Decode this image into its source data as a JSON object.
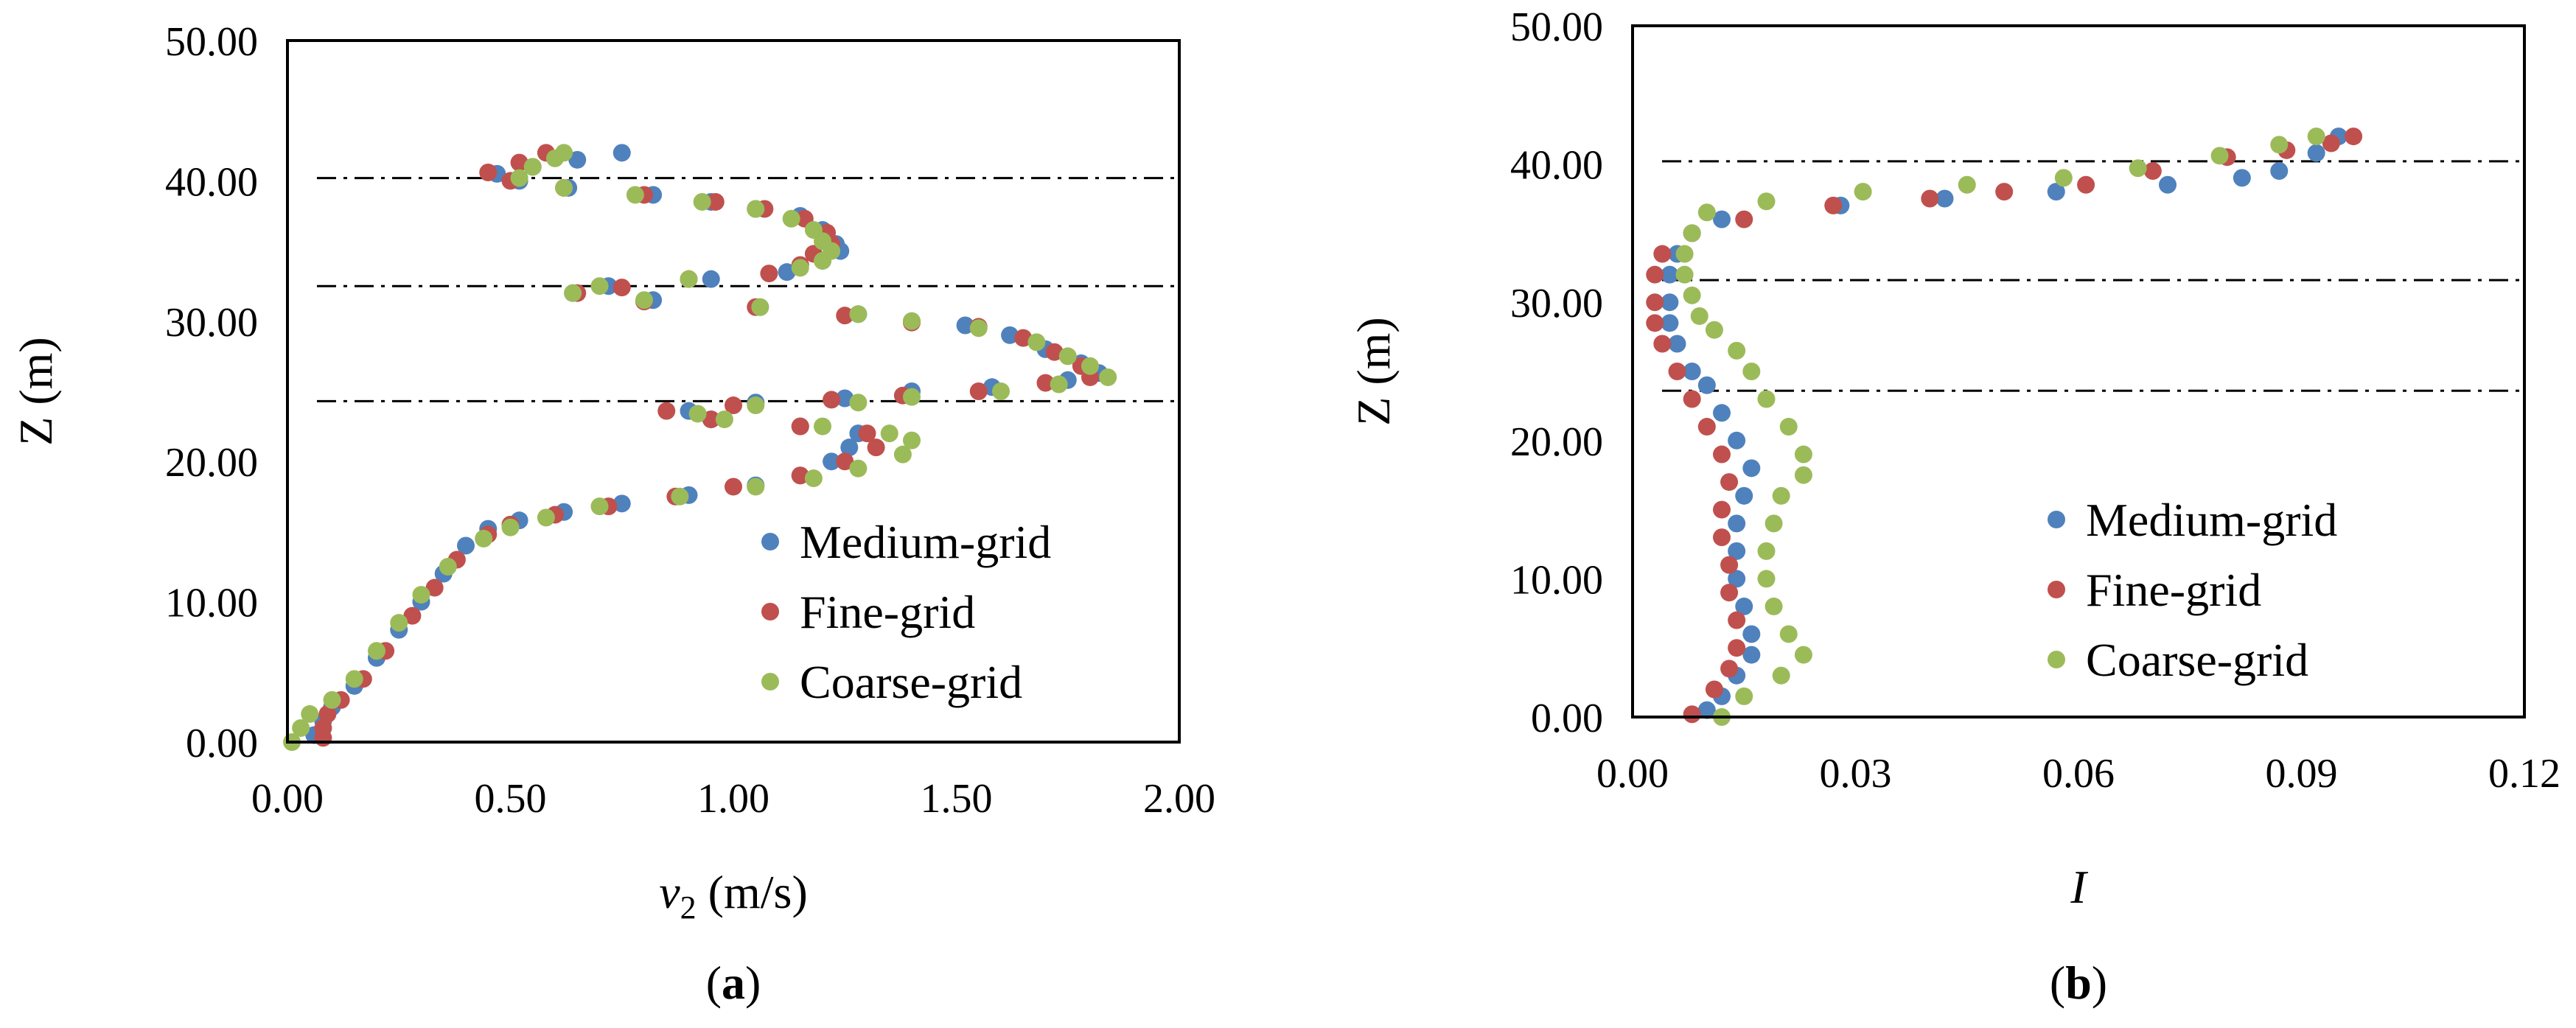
{
  "chart_data": [
    {
      "type": "scatter",
      "panel_label": "(a)",
      "panel_letter": "a",
      "title": "",
      "xlabel_symbol": "v",
      "xlabel_subscript": "2",
      "xlabel_unit": " (m/s)",
      "ylabel": "Z (m)",
      "xlim": [
        0,
        2
      ],
      "ylim": [
        0,
        50
      ],
      "xticks": [
        "0.00",
        "0.50",
        "1.00",
        "1.50",
        "2.00"
      ],
      "yticks": [
        "0.00",
        "10.00",
        "20.00",
        "30.00",
        "40.00",
        "50.00"
      ],
      "grid": false,
      "legend_position": "lower-right",
      "reference_lines_z": [
        40.2,
        32.5,
        24.3
      ],
      "series": [
        {
          "name": "Medium-grid",
          "color": "#4f81bd",
          "points": [
            [
              0.75,
              42.0
            ],
            [
              0.65,
              41.5
            ],
            [
              0.55,
              41.0
            ],
            [
              0.47,
              40.5
            ],
            [
              0.52,
              40.0
            ],
            [
              0.63,
              39.5
            ],
            [
              0.82,
              39.0
            ],
            [
              0.95,
              38.5
            ],
            [
              1.05,
              38.0
            ],
            [
              1.15,
              37.5
            ],
            [
              1.2,
              36.5
            ],
            [
              1.23,
              35.5
            ],
            [
              1.24,
              35.0
            ],
            [
              1.2,
              34.3
            ],
            [
              1.12,
              33.5
            ],
            [
              0.95,
              33.0
            ],
            [
              0.72,
              32.5
            ],
            [
              0.64,
              32.0
            ],
            [
              0.82,
              31.5
            ],
            [
              1.06,
              31.0
            ],
            [
              1.28,
              30.5
            ],
            [
              1.4,
              30.0
            ],
            [
              1.52,
              29.7
            ],
            [
              1.62,
              29.0
            ],
            [
              1.7,
              28.0
            ],
            [
              1.78,
              27.0
            ],
            [
              1.82,
              26.3
            ],
            [
              1.75,
              25.8
            ],
            [
              1.58,
              25.3
            ],
            [
              1.4,
              25.0
            ],
            [
              1.25,
              24.5
            ],
            [
              1.05,
              24.2
            ],
            [
              0.9,
              23.6
            ],
            [
              0.95,
              23.0
            ],
            [
              1.15,
              22.5
            ],
            [
              1.28,
              22.0
            ],
            [
              1.26,
              21.0
            ],
            [
              1.22,
              20.0
            ],
            [
              1.15,
              19.0
            ],
            [
              1.05,
              18.3
            ],
            [
              0.9,
              17.6
            ],
            [
              0.75,
              17.0
            ],
            [
              0.62,
              16.4
            ],
            [
              0.52,
              15.8
            ],
            [
              0.45,
              15.2
            ],
            [
              0.4,
              14.0
            ],
            [
              0.35,
              12.0
            ],
            [
              0.3,
              10.0
            ],
            [
              0.25,
              8.0
            ],
            [
              0.2,
              6.0
            ],
            [
              0.15,
              4.0
            ],
            [
              0.1,
              2.5
            ],
            [
              0.08,
              1.5
            ],
            [
              0.06,
              0.5
            ]
          ]
        },
        {
          "name": "Fine-grid",
          "color": "#c0504d",
          "points": [
            [
              0.58,
              42.0
            ],
            [
              0.52,
              41.3
            ],
            [
              0.45,
              40.6
            ],
            [
              0.5,
              40.0
            ],
            [
              0.62,
              39.5
            ],
            [
              0.8,
              39.0
            ],
            [
              0.96,
              38.5
            ],
            [
              1.07,
              38.0
            ],
            [
              1.16,
              37.3
            ],
            [
              1.21,
              36.3
            ],
            [
              1.22,
              35.5
            ],
            [
              1.18,
              34.8
            ],
            [
              1.15,
              34.0
            ],
            [
              1.08,
              33.4
            ],
            [
              0.9,
              33.0
            ],
            [
              0.75,
              32.4
            ],
            [
              0.65,
              32.0
            ],
            [
              0.8,
              31.4
            ],
            [
              1.05,
              31.0
            ],
            [
              1.25,
              30.4
            ],
            [
              1.4,
              29.9
            ],
            [
              1.55,
              29.6
            ],
            [
              1.65,
              28.8
            ],
            [
              1.72,
              27.8
            ],
            [
              1.78,
              26.8
            ],
            [
              1.8,
              26.0
            ],
            [
              1.7,
              25.6
            ],
            [
              1.55,
              25.0
            ],
            [
              1.38,
              24.7
            ],
            [
              1.22,
              24.4
            ],
            [
              1.0,
              24.0
            ],
            [
              0.85,
              23.6
            ],
            [
              0.95,
              23.0
            ],
            [
              1.15,
              22.5
            ],
            [
              1.3,
              22.0
            ],
            [
              1.32,
              21.0
            ],
            [
              1.25,
              20.0
            ],
            [
              1.15,
              19.0
            ],
            [
              1.0,
              18.2
            ],
            [
              0.87,
              17.5
            ],
            [
              0.72,
              16.8
            ],
            [
              0.6,
              16.2
            ],
            [
              0.5,
              15.5
            ],
            [
              0.45,
              14.8
            ],
            [
              0.38,
              13.0
            ],
            [
              0.33,
              11.0
            ],
            [
              0.28,
              9.0
            ],
            [
              0.22,
              6.5
            ],
            [
              0.17,
              4.5
            ],
            [
              0.12,
              3.0
            ],
            [
              0.09,
              2.0
            ],
            [
              0.08,
              1.0
            ],
            [
              0.08,
              0.3
            ]
          ]
        },
        {
          "name": "Coarse-grid",
          "color": "#9bbb59",
          "points": [
            [
              0.62,
              42.0
            ],
            [
              0.6,
              41.6
            ],
            [
              0.55,
              41.0
            ],
            [
              0.52,
              40.2
            ],
            [
              0.62,
              39.5
            ],
            [
              0.78,
              39.0
            ],
            [
              0.93,
              38.5
            ],
            [
              1.05,
              38.0
            ],
            [
              1.13,
              37.3
            ],
            [
              1.18,
              36.5
            ],
            [
              1.2,
              35.7
            ],
            [
              1.22,
              35.0
            ],
            [
              1.2,
              34.3
            ],
            [
              1.15,
              33.8
            ],
            [
              0.9,
              33.0
            ],
            [
              0.7,
              32.5
            ],
            [
              0.64,
              32.0
            ],
            [
              0.8,
              31.5
            ],
            [
              1.06,
              31.0
            ],
            [
              1.28,
              30.5
            ],
            [
              1.4,
              30.0
            ],
            [
              1.55,
              29.5
            ],
            [
              1.68,
              28.5
            ],
            [
              1.75,
              27.5
            ],
            [
              1.8,
              26.8
            ],
            [
              1.84,
              26.0
            ],
            [
              1.73,
              25.5
            ],
            [
              1.6,
              25.0
            ],
            [
              1.4,
              24.6
            ],
            [
              1.28,
              24.2
            ],
            [
              1.05,
              24.0
            ],
            [
              0.92,
              23.4
            ],
            [
              0.98,
              23.0
            ],
            [
              1.2,
              22.5
            ],
            [
              1.35,
              22.0
            ],
            [
              1.4,
              21.5
            ],
            [
              1.38,
              20.5
            ],
            [
              1.28,
              19.5
            ],
            [
              1.18,
              18.8
            ],
            [
              1.05,
              18.2
            ],
            [
              0.88,
              17.5
            ],
            [
              0.7,
              16.8
            ],
            [
              0.58,
              16.0
            ],
            [
              0.5,
              15.3
            ],
            [
              0.44,
              14.5
            ],
            [
              0.36,
              12.5
            ],
            [
              0.3,
              10.5
            ],
            [
              0.25,
              8.5
            ],
            [
              0.2,
              6.5
            ],
            [
              0.15,
              4.5
            ],
            [
              0.1,
              3.0
            ],
            [
              0.05,
              2.0
            ],
            [
              0.03,
              1.0
            ],
            [
              0.01,
              0.0
            ]
          ]
        }
      ]
    },
    {
      "type": "scatter",
      "panel_label": "(b)",
      "panel_letter": "b",
      "title": "",
      "xlabel_symbol": "I",
      "ylabel": "Z (m)",
      "xlim": [
        0,
        0.12
      ],
      "ylim": [
        0,
        50
      ],
      "xticks": [
        "0.00",
        "0.03",
        "0.06",
        "0.09",
        "0.12"
      ],
      "yticks": [
        "0.00",
        "10.00",
        "20.00",
        "30.00",
        "40.00",
        "50.00"
      ],
      "grid": false,
      "legend_position": "lower-right",
      "reference_lines_z": [
        40.2,
        31.6,
        23.6
      ],
      "series": [
        {
          "name": "Medium-grid",
          "color": "#4f81bd",
          "points": [
            [
              0.095,
              42.0
            ],
            [
              0.092,
              40.8
            ],
            [
              0.087,
              39.5
            ],
            [
              0.082,
              39.0
            ],
            [
              0.072,
              38.5
            ],
            [
              0.057,
              38.0
            ],
            [
              0.042,
              37.5
            ],
            [
              0.028,
              37.0
            ],
            [
              0.012,
              36.0
            ],
            [
              0.008,
              35.0
            ],
            [
              0.006,
              33.5
            ],
            [
              0.005,
              32.0
            ],
            [
              0.005,
              30.0
            ],
            [
              0.005,
              28.5
            ],
            [
              0.006,
              27.0
            ],
            [
              0.008,
              25.0
            ],
            [
              0.01,
              24.0
            ],
            [
              0.012,
              22.0
            ],
            [
              0.014,
              20.0
            ],
            [
              0.016,
              18.0
            ],
            [
              0.015,
              16.0
            ],
            [
              0.014,
              14.0
            ],
            [
              0.014,
              12.0
            ],
            [
              0.014,
              10.0
            ],
            [
              0.015,
              8.0
            ],
            [
              0.016,
              6.0
            ],
            [
              0.016,
              4.5
            ],
            [
              0.014,
              3.0
            ],
            [
              0.012,
              1.5
            ],
            [
              0.01,
              0.5
            ]
          ]
        },
        {
          "name": "Fine-grid",
          "color": "#c0504d",
          "points": [
            [
              0.097,
              42.0
            ],
            [
              0.094,
              41.5
            ],
            [
              0.088,
              41.0
            ],
            [
              0.08,
              40.5
            ],
            [
              0.07,
              39.5
            ],
            [
              0.061,
              38.5
            ],
            [
              0.05,
              38.0
            ],
            [
              0.04,
              37.5
            ],
            [
              0.027,
              37.0
            ],
            [
              0.015,
              36.0
            ],
            [
              0.008,
              35.0
            ],
            [
              0.004,
              33.5
            ],
            [
              0.003,
              32.0
            ],
            [
              0.003,
              30.0
            ],
            [
              0.003,
              28.5
            ],
            [
              0.004,
              27.0
            ],
            [
              0.006,
              25.0
            ],
            [
              0.008,
              23.0
            ],
            [
              0.01,
              21.0
            ],
            [
              0.012,
              19.0
            ],
            [
              0.013,
              17.0
            ],
            [
              0.012,
              15.0
            ],
            [
              0.012,
              13.0
            ],
            [
              0.013,
              11.0
            ],
            [
              0.013,
              9.0
            ],
            [
              0.014,
              7.0
            ],
            [
              0.014,
              5.0
            ],
            [
              0.013,
              3.5
            ],
            [
              0.011,
              2.0
            ],
            [
              0.008,
              0.2
            ]
          ]
        },
        {
          "name": "Coarse-grid",
          "color": "#9bbb59",
          "points": [
            [
              0.092,
              42.0
            ],
            [
              0.087,
              41.4
            ],
            [
              0.079,
              40.6
            ],
            [
              0.068,
              39.7
            ],
            [
              0.058,
              39.0
            ],
            [
              0.045,
              38.5
            ],
            [
              0.031,
              38.0
            ],
            [
              0.018,
              37.3
            ],
            [
              0.01,
              36.5
            ],
            [
              0.008,
              35.0
            ],
            [
              0.007,
              33.5
            ],
            [
              0.007,
              32.0
            ],
            [
              0.008,
              30.5
            ],
            [
              0.009,
              29.0
            ],
            [
              0.011,
              28.0
            ],
            [
              0.014,
              26.5
            ],
            [
              0.016,
              25.0
            ],
            [
              0.018,
              23.0
            ],
            [
              0.021,
              21.0
            ],
            [
              0.023,
              19.0
            ],
            [
              0.023,
              17.5
            ],
            [
              0.02,
              16.0
            ],
            [
              0.019,
              14.0
            ],
            [
              0.018,
              12.0
            ],
            [
              0.018,
              10.0
            ],
            [
              0.019,
              8.0
            ],
            [
              0.021,
              6.0
            ],
            [
              0.023,
              4.5
            ],
            [
              0.02,
              3.0
            ],
            [
              0.015,
              1.5
            ],
            [
              0.012,
              0.0
            ]
          ]
        }
      ]
    }
  ]
}
